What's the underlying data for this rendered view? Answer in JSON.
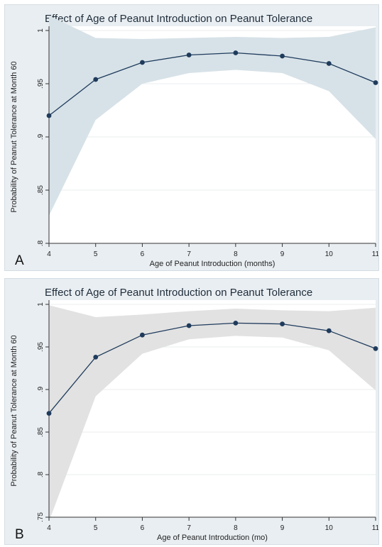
{
  "chart_data": [
    {
      "type": "line",
      "panel_label": "A",
      "title": "Effect of Age of Peanut Introduction on Peanut Tolerance",
      "xlabel": "Age of Peanut Introduction (months)",
      "ylabel": "Probability of Peanut Tolerance at Month 60",
      "x": [
        4,
        5,
        6,
        7,
        8,
        9,
        10,
        11
      ],
      "y": [
        0.92,
        0.954,
        0.97,
        0.977,
        0.979,
        0.976,
        0.969,
        0.951
      ],
      "ci_lower": [
        0.826,
        0.916,
        0.95,
        0.96,
        0.963,
        0.96,
        0.943,
        0.898
      ],
      "ci_upper": [
        1.014,
        0.993,
        0.992,
        0.993,
        0.994,
        0.993,
        0.994,
        1.003
      ],
      "xlim": [
        4,
        11
      ],
      "ylim": [
        0.8,
        1.0
      ],
      "xticks": [
        "4",
        "5",
        "6",
        "7",
        "8",
        "9",
        "10",
        "11"
      ],
      "yticks": [
        {
          "value": 0.8,
          "label": ".8"
        },
        {
          "value": 0.85,
          "label": ".85"
        },
        {
          "value": 0.9,
          "label": ".9"
        },
        {
          "value": 0.95,
          "label": ".95"
        },
        {
          "value": 1.0,
          "label": "1"
        }
      ],
      "grid": true,
      "colors": {
        "line": "#1f3b5c",
        "band": "#d7e2e8",
        "plot_bg": "#ffffff",
        "panel_bg": "#e9eef2"
      }
    },
    {
      "type": "line",
      "panel_label": "B",
      "title": "Effect of Age of Peanut Introduction on Peanut Tolerance",
      "xlabel": "Age of Peanut Introduction (mo)",
      "ylabel": "Probability of Peanut Tolerance at Month 60",
      "x": [
        4,
        5,
        6,
        7,
        8,
        9,
        10,
        11
      ],
      "y": [
        0.872,
        0.938,
        0.964,
        0.975,
        0.978,
        0.977,
        0.969,
        0.948
      ],
      "ci_lower": [
        0.745,
        0.892,
        0.942,
        0.959,
        0.963,
        0.961,
        0.946,
        0.899
      ],
      "ci_upper": [
        0.999,
        0.985,
        0.988,
        0.992,
        0.995,
        0.993,
        0.992,
        0.996
      ],
      "xlim": [
        4,
        11
      ],
      "ylim": [
        0.75,
        1.0
      ],
      "xticks": [
        "4",
        "5",
        "6",
        "7",
        "8",
        "9",
        "10",
        "11"
      ],
      "yticks": [
        {
          "value": 0.75,
          "label": ".75"
        },
        {
          "value": 0.8,
          "label": ".8"
        },
        {
          "value": 0.85,
          "label": ".85"
        },
        {
          "value": 0.9,
          "label": ".9"
        },
        {
          "value": 0.95,
          "label": ".95"
        },
        {
          "value": 1.0,
          "label": "1"
        }
      ],
      "grid": true,
      "colors": {
        "line": "#1f3b5c",
        "band": "#e2e2e2",
        "plot_bg": "#ffffff",
        "panel_bg": "#e9eef2"
      }
    }
  ]
}
